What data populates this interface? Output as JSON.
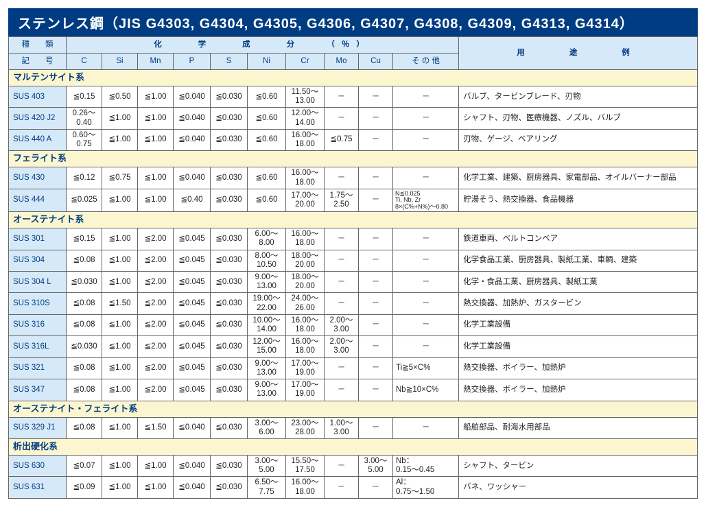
{
  "title": "ステンレス鋼（JIS G4303, G4304, G4305, G4306, G4307, G4308, G4309, G4313, G4314）",
  "headers": {
    "type": "種　　類",
    "chem": "化　　学　　成　　分　　（％）",
    "use": "用　　途　　例",
    "grade": "記　　号",
    "c": "C",
    "si": "Si",
    "mn": "Mn",
    "p": "P",
    "s": "S",
    "ni": "Ni",
    "cr": "Cr",
    "mo": "Mo",
    "cu": "Cu",
    "other": "そ の 他"
  },
  "sections": {
    "s0": "マルテンサイト系",
    "s1": "フェライト系",
    "s2": "オーステナイト系",
    "s3": "オーステナイト・フェライト系",
    "s4": "析出硬化系"
  },
  "rows": {
    "r0": {
      "g": "SUS 403",
      "c": "≦0.15",
      "si": "≦0.50",
      "mn": "≦1.00",
      "p": "≦0.040",
      "s": "≦0.030",
      "ni": "≦0.60",
      "cr": "11.50～\n13.00",
      "mo": "－",
      "cu": "－",
      "ot": "－",
      "use": "バルブ、タービンブレード、刃物"
    },
    "r1": {
      "g": "SUS 420 J2",
      "c": "0.26～\n0.40",
      "si": "≦1.00",
      "mn": "≦1.00",
      "p": "≦0.040",
      "s": "≦0.030",
      "ni": "≦0.60",
      "cr": "12.00～\n14.00",
      "mo": "－",
      "cu": "－",
      "ot": "－",
      "use": "シャフト、刃物、医療機器、ノズル、バルブ"
    },
    "r2": {
      "g": "SUS 440 A",
      "c": "0.60～\n0.75",
      "si": "≦1.00",
      "mn": "≦1.00",
      "p": "≦0.040",
      "s": "≦0.030",
      "ni": "≦0.60",
      "cr": "16.00～\n18.00",
      "mo": "≦0.75",
      "cu": "－",
      "ot": "－",
      "use": "刃物、ゲージ、ベアリング"
    },
    "r3": {
      "g": "SUS 430",
      "c": "≦0.12",
      "si": "≦0.75",
      "mn": "≦1.00",
      "p": "≦0.040",
      "s": "≦0.030",
      "ni": "≦0.60",
      "cr": "16.00～\n18.00",
      "mo": "－",
      "cu": "－",
      "ot": "－",
      "use": "化学工業、建築、厨房器具、家電部品、オイルバーナー部品"
    },
    "r4": {
      "g": "SUS 444",
      "c": "≦0.025",
      "si": "≦1.00",
      "mn": "≦1.00",
      "p": "≦0.40",
      "s": "≦0.030",
      "ni": "≦0.60",
      "cr": "17.00～\n20.00",
      "mo": "1.75～\n2.50",
      "cu": "－",
      "ot": "N≦0.025\nTi, Nb, Zr\n8×(C%+N%)～0.80",
      "use": "貯湯そう、熱交換器、食品機器"
    },
    "r5": {
      "g": "SUS 301",
      "c": "≦0.15",
      "si": "≦1.00",
      "mn": "≦2.00",
      "p": "≦0.045",
      "s": "≦0.030",
      "ni": "6.00～\n8.00",
      "cr": "16.00～\n18.00",
      "mo": "－",
      "cu": "－",
      "ot": "－",
      "use": "鉄道車両、ベルトコンベア"
    },
    "r6": {
      "g": "SUS 304",
      "c": "≦0.08",
      "si": "≦1.00",
      "mn": "≦2.00",
      "p": "≦0.045",
      "s": "≦0.030",
      "ni": "8.00～\n10.50",
      "cr": "18.00～\n20.00",
      "mo": "－",
      "cu": "－",
      "ot": "－",
      "use": "化学食品工業、厨房器具、製紙工業、車輌、建築"
    },
    "r7": {
      "g": "SUS 304 L",
      "c": "≦0.030",
      "si": "≦1.00",
      "mn": "≦2.00",
      "p": "≦0.045",
      "s": "≦0.030",
      "ni": "9.00～\n13.00",
      "cr": "18.00～\n20.00",
      "mo": "－",
      "cu": "－",
      "ot": "－",
      "use": "化学・食品工業、厨房器具、製紙工業"
    },
    "r8": {
      "g": "SUS 310S",
      "c": "≦0.08",
      "si": "≦1.50",
      "mn": "≦2.00",
      "p": "≦0.045",
      "s": "≦0.030",
      "ni": "19.00～\n22.00",
      "cr": "24.00～\n26.00",
      "mo": "－",
      "cu": "－",
      "ot": "－",
      "use": "熱交換器、加熱炉、ガスタービン"
    },
    "r9": {
      "g": "SUS 316",
      "c": "≦0.08",
      "si": "≦1.00",
      "mn": "≦2.00",
      "p": "≦0.045",
      "s": "≦0.030",
      "ni": "10.00～\n14.00",
      "cr": "16.00～\n18.00",
      "mo": "2.00～\n3.00",
      "cu": "－",
      "ot": "－",
      "use": "化学工業設備"
    },
    "r10": {
      "g": "SUS 316L",
      "c": "≦0.030",
      "si": "≦1.00",
      "mn": "≦2.00",
      "p": "≦0.045",
      "s": "≦0.030",
      "ni": "12.00～\n15.00",
      "cr": "16.00～\n18.00",
      "mo": "2.00～\n3.00",
      "cu": "－",
      "ot": "－",
      "use": "化学工業設備"
    },
    "r11": {
      "g": "SUS 321",
      "c": "≦0.08",
      "si": "≦1.00",
      "mn": "≦2.00",
      "p": "≦0.045",
      "s": "≦0.030",
      "ni": "9.00～\n13.00",
      "cr": "17.00～\n19.00",
      "mo": "－",
      "cu": "－",
      "ot": "Ti≧5×C%",
      "use": "熱交換器、ボイラー、加熱炉"
    },
    "r12": {
      "g": "SUS 347",
      "c": "≦0.08",
      "si": "≦1.00",
      "mn": "≦2.00",
      "p": "≦0.045",
      "s": "≦0.030",
      "ni": "9.00～\n13.00",
      "cr": "17.00～\n19.00",
      "mo": "－",
      "cu": "－",
      "ot": "Nb≧10×C%",
      "use": "熱交換器、ボイラー、加熱炉"
    },
    "r13": {
      "g": "SUS 329 J1",
      "c": "≦0.08",
      "si": "≦1.00",
      "mn": "≦1.50",
      "p": "≦0.040",
      "s": "≦0.030",
      "ni": "3.00～\n6.00",
      "cr": "23.00～\n28.00",
      "mo": "1.00～\n3.00",
      "cu": "－",
      "ot": "－",
      "use": "船舶部品、耐海水用部品"
    },
    "r14": {
      "g": "SUS 630",
      "c": "≦0.07",
      "si": "≦1.00",
      "mn": "≦1.00",
      "p": "≦0.040",
      "s": "≦0.030",
      "ni": "3.00～\n5.00",
      "cr": "15.50～\n17.50",
      "mo": "－",
      "cu": "3.00～\n5.00",
      "ot": "Nb：\n0.15～0.45",
      "use": "シャフト、タービン"
    },
    "r15": {
      "g": "SUS 631",
      "c": "≦0.09",
      "si": "≦1.00",
      "mn": "≦1.00",
      "p": "≦0.040",
      "s": "≦0.030",
      "ni": "6.50～\n7.75",
      "cr": "16.00～\n18.00",
      "mo": "－",
      "cu": "－",
      "ot": "Al：\n0.75～1.50",
      "use": "バネ、ワッシャー"
    }
  },
  "colwidths": {
    "grade": "84px",
    "c": "52px",
    "si": "52px",
    "mn": "52px",
    "p": "54px",
    "s": "54px",
    "ni": "56px",
    "cr": "56px",
    "mo": "50px",
    "cu": "50px",
    "other": "96px",
    "use": "auto"
  },
  "colors": {
    "title_bg": "#003c82",
    "title_fg": "#ffffff",
    "header_bg": "#d6e9f8",
    "header_fg": "#003c82",
    "section_bg": "#fbf6d0",
    "border": "#666666"
  }
}
